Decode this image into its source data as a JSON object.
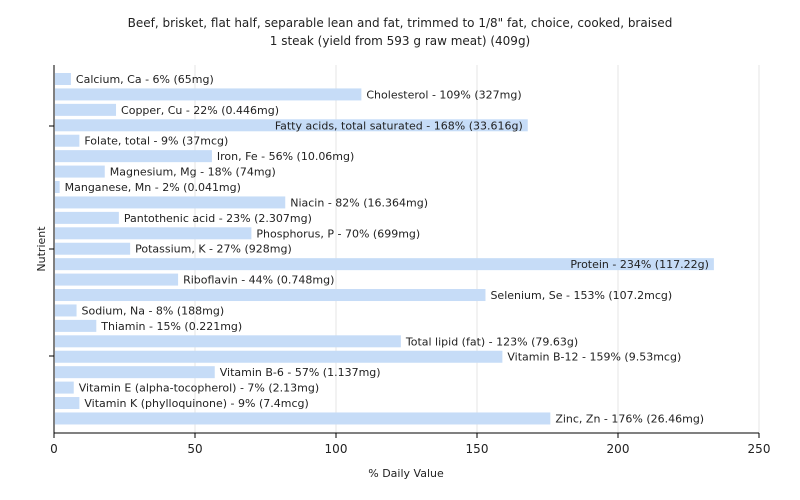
{
  "chart_data": {
    "type": "bar",
    "orientation": "horizontal",
    "title": "Beef, brisket, flat half, separable lean and fat, trimmed to 1/8\" fat, choice, cooked, braised",
    "subtitle": "1 steak (yield from 593 g raw meat) (409g)",
    "xlabel": "% Daily Value",
    "ylabel": "Nutrient",
    "xlim": [
      0,
      250
    ],
    "xticks": [
      0,
      50,
      100,
      150,
      200,
      250
    ],
    "grid": true,
    "bar_color": "#c6dcf7",
    "bars": [
      {
        "label": "Calcium, Ca - 6% (65mg)",
        "value": 6
      },
      {
        "label": "Cholesterol - 109% (327mg)",
        "value": 109
      },
      {
        "label": "Copper, Cu - 22% (0.446mg)",
        "value": 22
      },
      {
        "label": "Fatty acids, total saturated - 168% (33.616g)",
        "value": 168
      },
      {
        "label": "Folate, total - 9% (37mcg)",
        "value": 9
      },
      {
        "label": "Iron, Fe - 56% (10.06mg)",
        "value": 56
      },
      {
        "label": "Magnesium, Mg - 18% (74mg)",
        "value": 18
      },
      {
        "label": "Manganese, Mn - 2% (0.041mg)",
        "value": 2
      },
      {
        "label": "Niacin - 82% (16.364mg)",
        "value": 82
      },
      {
        "label": "Pantothenic acid - 23% (2.307mg)",
        "value": 23
      },
      {
        "label": "Phosphorus, P - 70% (699mg)",
        "value": 70
      },
      {
        "label": "Potassium, K - 27% (928mg)",
        "value": 27
      },
      {
        "label": "Protein - 234% (117.22g)",
        "value": 234
      },
      {
        "label": "Riboflavin - 44% (0.748mg)",
        "value": 44
      },
      {
        "label": "Selenium, Se - 153% (107.2mcg)",
        "value": 153
      },
      {
        "label": "Sodium, Na - 8% (188mg)",
        "value": 8
      },
      {
        "label": "Thiamin - 15% (0.221mg)",
        "value": 15
      },
      {
        "label": "Total lipid (fat) - 123% (79.63g)",
        "value": 123
      },
      {
        "label": "Vitamin B-12 - 159% (9.53mcg)",
        "value": 159
      },
      {
        "label": "Vitamin B-6 - 57% (1.137mg)",
        "value": 57
      },
      {
        "label": "Vitamin E (alpha-tocopherol) - 7% (2.13mg)",
        "value": 7
      },
      {
        "label": "Vitamin K (phylloquinone) - 9% (7.4mcg)",
        "value": 9
      },
      {
        "label": "Zinc, Zn - 176% (26.46mg)",
        "value": 176
      }
    ]
  }
}
